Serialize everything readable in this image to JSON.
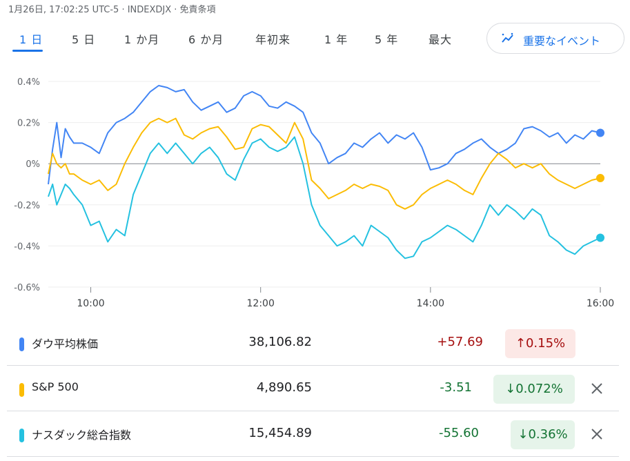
{
  "status_line": "1月26日, 17:02:25 UTC-5 · INDEXDJX · 免責条項",
  "range_tabs": [
    {
      "label": "1 日",
      "active": true
    },
    {
      "label": "5 日",
      "active": false
    },
    {
      "label": "1 か月",
      "active": false
    },
    {
      "label": "6 か月",
      "active": false
    },
    {
      "label": "年初来",
      "active": false
    },
    {
      "label": "1 年",
      "active": false
    },
    {
      "label": "5 年",
      "active": false
    },
    {
      "label": "最大",
      "active": false
    }
  ],
  "events_button": {
    "label": "重要なイベント",
    "icon": "sparkline-icon"
  },
  "colors": {
    "dow": "#4285f4",
    "sp500": "#fbbc04",
    "nasdaq": "#24c1e0",
    "accent": "#1a73e8",
    "up": "#a50e0e",
    "down": "#137333"
  },
  "chart_data": {
    "type": "line",
    "x_unit": "hours",
    "xlim": [
      9.5,
      16.0
    ],
    "x_ticks": [
      10,
      12,
      14,
      16
    ],
    "x_tick_labels": [
      "10:00",
      "12:00",
      "14:00",
      "16:00"
    ],
    "ylim": [
      -0.6,
      0.4
    ],
    "y_ticks": [
      0.4,
      0.2,
      0,
      -0.2,
      -0.4,
      -0.6
    ],
    "y_tick_labels": [
      "0.4%",
      "0.2%",
      "0%",
      "-0.2%",
      "-0.4%",
      "-0.6%"
    ],
    "grid": true,
    "series": [
      {
        "name": "ダウ平均株価",
        "color": "#4285f4",
        "x": [
          9.5,
          9.55,
          9.6,
          9.65,
          9.7,
          9.75,
          9.8,
          9.9,
          10.0,
          10.1,
          10.2,
          10.3,
          10.4,
          10.5,
          10.6,
          10.7,
          10.8,
          10.9,
          11.0,
          11.1,
          11.2,
          11.3,
          11.4,
          11.5,
          11.6,
          11.7,
          11.8,
          11.9,
          12.0,
          12.1,
          12.2,
          12.3,
          12.4,
          12.5,
          12.6,
          12.7,
          12.8,
          12.9,
          13.0,
          13.1,
          13.2,
          13.3,
          13.4,
          13.5,
          13.6,
          13.7,
          13.8,
          13.9,
          14.0,
          14.1,
          14.2,
          14.3,
          14.4,
          14.5,
          14.6,
          14.7,
          14.8,
          14.9,
          15.0,
          15.1,
          15.2,
          15.3,
          15.4,
          15.5,
          15.6,
          15.7,
          15.8,
          15.9,
          16.0
        ],
        "values": [
          -0.1,
          0.07,
          0.2,
          0.03,
          0.17,
          0.13,
          0.1,
          0.1,
          0.08,
          0.05,
          0.15,
          0.2,
          0.22,
          0.25,
          0.3,
          0.35,
          0.38,
          0.37,
          0.35,
          0.36,
          0.3,
          0.26,
          0.28,
          0.3,
          0.25,
          0.27,
          0.33,
          0.35,
          0.33,
          0.28,
          0.27,
          0.3,
          0.28,
          0.25,
          0.15,
          0.1,
          0.0,
          0.03,
          0.05,
          0.1,
          0.08,
          0.12,
          0.15,
          0.1,
          0.14,
          0.12,
          0.15,
          0.08,
          -0.03,
          -0.02,
          0.0,
          0.05,
          0.07,
          0.1,
          0.12,
          0.08,
          0.05,
          0.07,
          0.1,
          0.17,
          0.18,
          0.16,
          0.13,
          0.15,
          0.1,
          0.14,
          0.12,
          0.16,
          0.15
        ]
      },
      {
        "name": "S&P 500",
        "color": "#fbbc04",
        "x": [
          9.5,
          9.55,
          9.6,
          9.65,
          9.7,
          9.75,
          9.8,
          9.9,
          10.0,
          10.1,
          10.2,
          10.3,
          10.4,
          10.5,
          10.6,
          10.7,
          10.8,
          10.9,
          11.0,
          11.1,
          11.2,
          11.3,
          11.4,
          11.5,
          11.6,
          11.7,
          11.8,
          11.9,
          12.0,
          12.1,
          12.2,
          12.3,
          12.4,
          12.5,
          12.6,
          12.7,
          12.8,
          12.9,
          13.0,
          13.1,
          13.2,
          13.3,
          13.4,
          13.5,
          13.6,
          13.7,
          13.8,
          13.9,
          14.0,
          14.1,
          14.2,
          14.3,
          14.4,
          14.5,
          14.6,
          14.7,
          14.8,
          14.9,
          15.0,
          15.1,
          15.2,
          15.3,
          15.4,
          15.5,
          15.6,
          15.7,
          15.8,
          15.9,
          16.0
        ],
        "values": [
          -0.05,
          0.05,
          0.0,
          -0.02,
          0.0,
          -0.05,
          -0.05,
          -0.08,
          -0.1,
          -0.08,
          -0.13,
          -0.1,
          0.0,
          0.08,
          0.15,
          0.2,
          0.22,
          0.2,
          0.22,
          0.14,
          0.12,
          0.15,
          0.17,
          0.18,
          0.13,
          0.07,
          0.08,
          0.17,
          0.19,
          0.18,
          0.14,
          0.1,
          0.2,
          0.12,
          -0.08,
          -0.12,
          -0.17,
          -0.15,
          -0.13,
          -0.1,
          -0.12,
          -0.1,
          -0.11,
          -0.13,
          -0.2,
          -0.22,
          -0.2,
          -0.15,
          -0.12,
          -0.1,
          -0.08,
          -0.1,
          -0.13,
          -0.15,
          -0.07,
          0.0,
          0.05,
          0.02,
          -0.02,
          0.0,
          -0.02,
          0.0,
          -0.05,
          -0.08,
          -0.1,
          -0.12,
          -0.1,
          -0.08,
          -0.07
        ]
      },
      {
        "name": "ナスダック総合指数",
        "color": "#24c1e0",
        "x": [
          9.5,
          9.55,
          9.6,
          9.65,
          9.7,
          9.75,
          9.8,
          9.9,
          10.0,
          10.1,
          10.2,
          10.3,
          10.4,
          10.5,
          10.6,
          10.7,
          10.8,
          10.9,
          11.0,
          11.1,
          11.2,
          11.3,
          11.4,
          11.5,
          11.6,
          11.7,
          11.8,
          11.9,
          12.0,
          12.1,
          12.2,
          12.3,
          12.4,
          12.5,
          12.6,
          12.7,
          12.8,
          12.9,
          13.0,
          13.1,
          13.2,
          13.3,
          13.4,
          13.5,
          13.6,
          13.7,
          13.8,
          13.9,
          14.0,
          14.1,
          14.2,
          14.3,
          14.4,
          14.5,
          14.6,
          14.7,
          14.8,
          14.9,
          15.0,
          15.1,
          15.2,
          15.3,
          15.4,
          15.5,
          15.6,
          15.7,
          15.8,
          15.9,
          16.0
        ],
        "values": [
          -0.16,
          -0.1,
          -0.2,
          -0.15,
          -0.1,
          -0.12,
          -0.15,
          -0.2,
          -0.3,
          -0.28,
          -0.38,
          -0.32,
          -0.35,
          -0.15,
          -0.05,
          0.05,
          0.1,
          0.05,
          0.1,
          0.05,
          0.0,
          0.05,
          0.08,
          0.03,
          -0.05,
          -0.08,
          0.02,
          0.1,
          0.12,
          0.08,
          0.06,
          0.08,
          0.13,
          0.0,
          -0.2,
          -0.3,
          -0.35,
          -0.4,
          -0.38,
          -0.35,
          -0.4,
          -0.3,
          -0.33,
          -0.36,
          -0.42,
          -0.46,
          -0.45,
          -0.38,
          -0.36,
          -0.33,
          -0.3,
          -0.32,
          -0.35,
          -0.38,
          -0.3,
          -0.2,
          -0.25,
          -0.2,
          -0.23,
          -0.27,
          -0.22,
          -0.25,
          -0.35,
          -0.38,
          -0.42,
          -0.44,
          -0.4,
          -0.38,
          -0.36
        ]
      }
    ]
  },
  "rows": [
    {
      "name": "ダウ平均株価",
      "price": "38,106.82",
      "change": "+57.69",
      "badge": "0.15%",
      "dir": "up",
      "color": "#4285f4",
      "closable": false
    },
    {
      "name": "S&P 500",
      "price": "4,890.65",
      "change": "-3.51",
      "badge": "0.072%",
      "dir": "down",
      "color": "#fbbc04",
      "closable": true
    },
    {
      "name": "ナスダック総合指数",
      "price": "15,454.89",
      "change": "-55.60",
      "badge": "0.36%",
      "dir": "down",
      "color": "#24c1e0",
      "closable": true
    }
  ]
}
